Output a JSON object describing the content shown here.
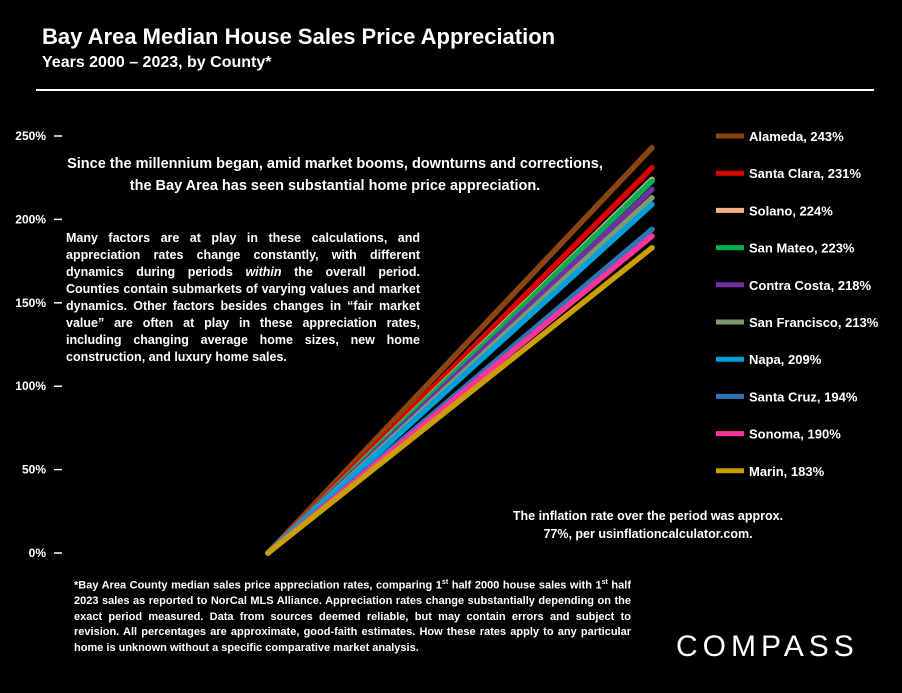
{
  "header": {
    "title": "Bay Area Median House Sales Price Appreciation",
    "subtitle": "Years 2000 – 2023, by County*"
  },
  "annotations": {
    "headline": "Since the millennium began, amid market booms, downturns and corrections, the Bay Area has seen substantial home price appreciation.",
    "factors_part1": "Many factors are at play in these calculations, and appreciation rates change constantly, with different dynamics during periods ",
    "factors_emph": "within",
    "factors_part2": " the overall period. Counties contain submarkets of varying values and market dynamics. Other factors besides changes in “fair market value” are often at play in these appreciation rates, including  changing average home sizes, new home construction, and luxury home sales.",
    "inflation": "The inflation rate over the period was approx. 77%, per usinflationcalculator.com."
  },
  "footnote": {
    "p1": "*Bay Area County median sales price appreciation rates, comparing 1",
    "sup1": "st",
    "p2": " half 2000 house sales with 1",
    "sup2": "st",
    "p3": " half 2023 sales as reported to NorCal MLS Alliance. Appreciation rates change substantially depending on the exact period measured. Data from sources deemed reliable, but may contain errors and subject to revision. All percentages are approximate, good-faith estimates. How these rates apply to any particular home is unknown without a specific comparative market analysis."
  },
  "brand": {
    "logo_text": "COMPASS"
  },
  "chart_data": {
    "type": "line",
    "title": "Bay Area Median House Sales Price Appreciation",
    "subtitle": "Years 2000 – 2023, by County*",
    "x": [
      2000,
      2023
    ],
    "ylim": [
      0,
      250
    ],
    "yticks": [
      0,
      50,
      100,
      150,
      200,
      250
    ],
    "ytick_labels": [
      "0%",
      "50%",
      "100%",
      "150%",
      "200%",
      "250%"
    ],
    "grid": false,
    "legend_position": "right",
    "series": [
      {
        "name": "Alameda, 243%",
        "values": [
          0,
          243
        ],
        "color": "#8B4513"
      },
      {
        "name": "Santa Clara, 231%",
        "values": [
          0,
          231
        ],
        "color": "#D90000"
      },
      {
        "name": "Solano, 224%",
        "values": [
          0,
          224
        ],
        "color": "#F4B183"
      },
      {
        "name": "San Mateo, 223%",
        "values": [
          0,
          223
        ],
        "color": "#00B050"
      },
      {
        "name": "Contra Costa, 218%",
        "values": [
          0,
          218
        ],
        "color": "#7030A0"
      },
      {
        "name": "San Francisco, 213%",
        "values": [
          0,
          213
        ],
        "color": "#7F9A6E"
      },
      {
        "name": "Napa, 209%",
        "values": [
          0,
          209
        ],
        "color": "#00A0DC"
      },
      {
        "name": "Santa Cruz, 194%",
        "values": [
          0,
          194
        ],
        "color": "#2E75B6"
      },
      {
        "name": "Sonoma, 190%",
        "values": [
          0,
          190
        ],
        "color": "#FF3399"
      },
      {
        "name": "Marin, 183%",
        "values": [
          0,
          183
        ],
        "color": "#C9A000"
      }
    ]
  }
}
